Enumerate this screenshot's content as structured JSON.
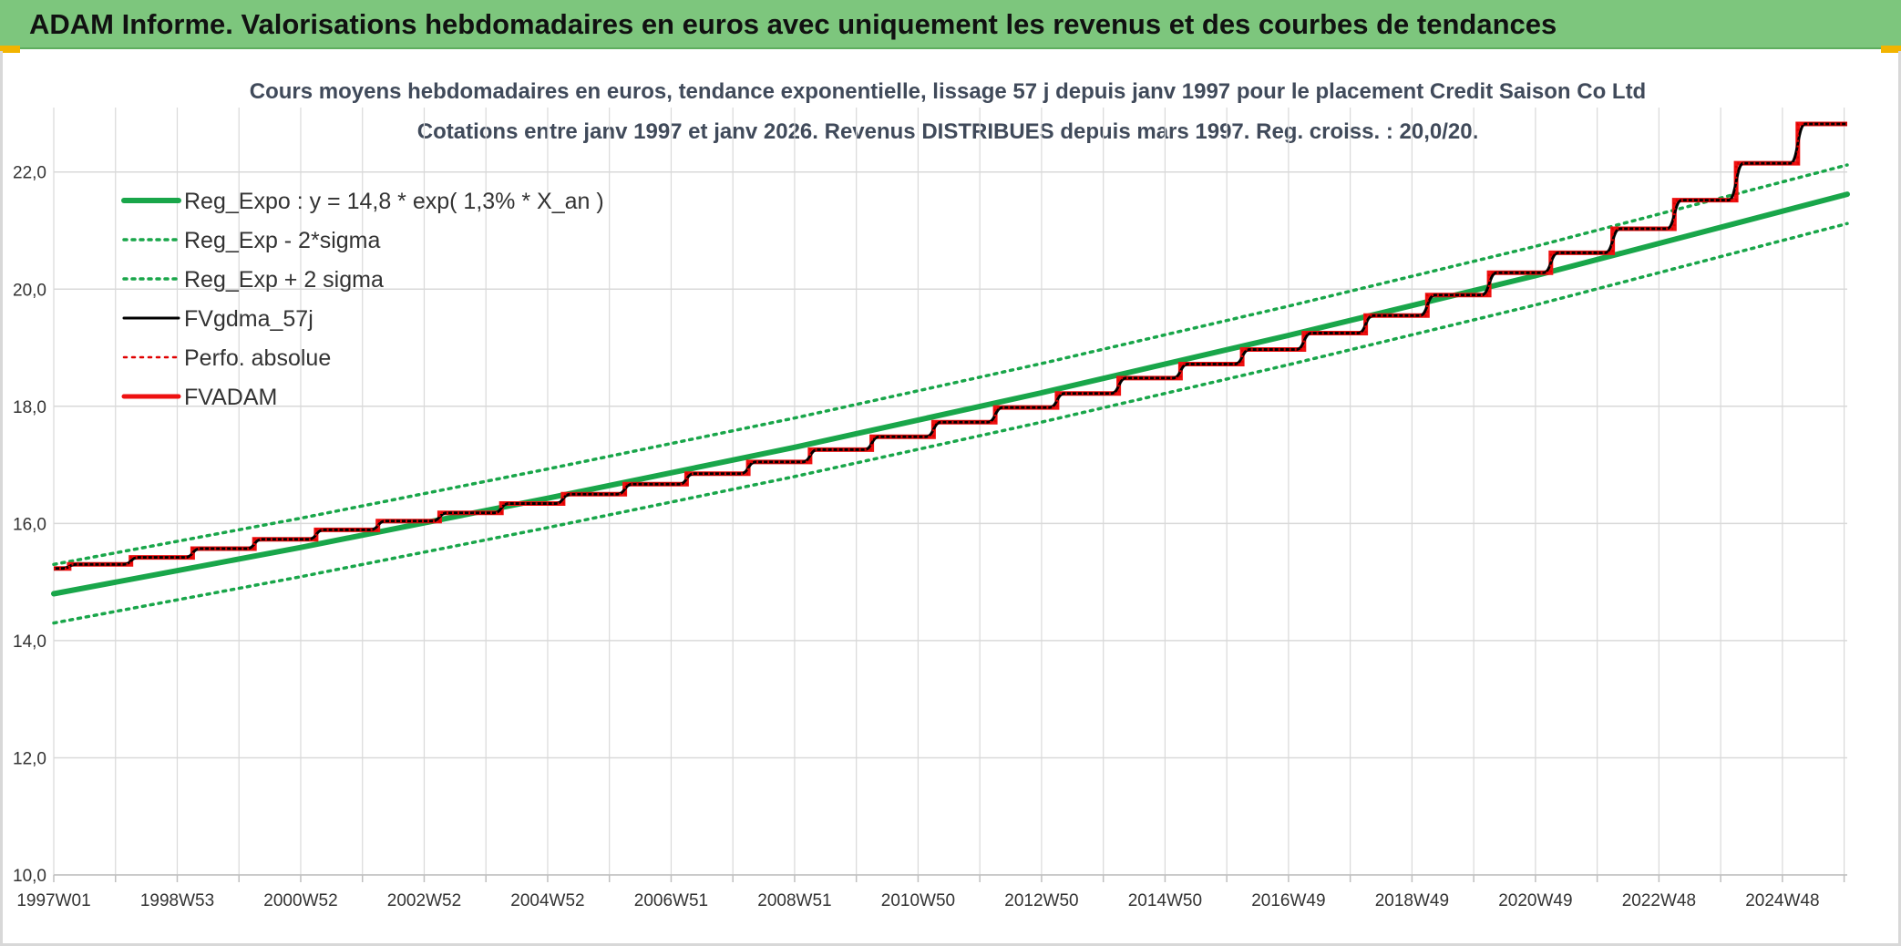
{
  "banner": {
    "title": "ADAM Informe. Valorisations hebdomadaires en euros avec uniquement les revenus et des courbes de tendances"
  },
  "chart_data": {
    "type": "line",
    "title": "Cours moyens hebdomadaires en euros, tendance exponentielle, lissage 57 j depuis janv 1997 pour le placement Credit Saison Co Ltd",
    "subtitle": "Cotations entre janv 1997 et janv 2026. Revenus DISTRIBUES depuis mars 1997. Reg. croiss. : 20,0/20.",
    "xlabel": "",
    "ylabel": "",
    "x_tick_labels": [
      "1997W01",
      "1998W53",
      "2000W52",
      "2002W52",
      "2004W52",
      "2006W51",
      "2008W51",
      "2010W50",
      "2012W50",
      "2014W50",
      "2016W49",
      "2018W49",
      "2020W49",
      "2022W48",
      "2024W48"
    ],
    "x_tick_years": [
      1997,
      1999,
      2001,
      2003,
      2005,
      2007,
      2009,
      2011,
      2013,
      2015,
      2017,
      2019,
      2021,
      2023,
      2025
    ],
    "xlim": [
      1997.0,
      2026.05
    ],
    "y_tick_labels": [
      "10,0",
      "12,0",
      "14,0",
      "16,0",
      "18,0",
      "20,0",
      "22,0"
    ],
    "y_ticks": [
      10,
      12,
      14,
      16,
      18,
      20,
      22
    ],
    "ylim": [
      10,
      23.1
    ],
    "grid": true,
    "legend_position": "top-left",
    "regression": {
      "a": 14.8,
      "growth": 0.013,
      "sigma": 0.25
    },
    "series": [
      {
        "name": "Reg_Expo : y = 14,8 * exp( 1,3% *  X_an )",
        "key": "reg",
        "color": "#19a64a",
        "style": "solid",
        "width": 6,
        "x": [
          1997.0,
          2001.0,
          2005.0,
          2009.0,
          2013.0,
          2017.0,
          2021.0,
          2026.05
        ],
        "values": [
          14.8,
          15.59,
          16.43,
          17.3,
          18.23,
          19.21,
          20.23,
          21.62
        ]
      },
      {
        "name": "Reg_Exp - 2*sigma",
        "key": "reg_minus",
        "color": "#19a64a",
        "style": "dotted",
        "width": 3.5,
        "x": [
          1997.0,
          2001.0,
          2005.0,
          2009.0,
          2013.0,
          2017.0,
          2021.0,
          2026.05
        ],
        "values": [
          14.3,
          15.09,
          15.93,
          16.8,
          17.73,
          18.71,
          19.73,
          21.12
        ]
      },
      {
        "name": "Reg_Exp + 2 sigma",
        "key": "reg_plus",
        "color": "#19a64a",
        "style": "dotted",
        "width": 3.5,
        "x": [
          1997.0,
          2001.0,
          2005.0,
          2009.0,
          2013.0,
          2017.0,
          2021.0,
          2026.05
        ],
        "values": [
          15.3,
          16.09,
          16.93,
          17.8,
          18.73,
          19.71,
          20.73,
          22.12
        ]
      },
      {
        "name": "FVgdma_57j",
        "key": "fvgdma",
        "color": "#000000",
        "style": "solid",
        "width": 3
      },
      {
        "name": "Perfo. absolue",
        "key": "perfo",
        "color": "#e00000",
        "style": "dotted",
        "width": 2.5
      },
      {
        "name": "FVADAM",
        "key": "fvadam",
        "color": "#ee1111",
        "style": "solid",
        "width": 5
      }
    ],
    "fvadam_steps": {
      "start_x": 1997.0,
      "start_value": 15.23,
      "step_x": [
        1997.25,
        1998.25,
        1999.25,
        2000.25,
        2001.25,
        2002.25,
        2003.25,
        2004.25,
        2005.25,
        2006.25,
        2007.25,
        2008.25,
        2009.25,
        2010.25,
        2011.25,
        2012.25,
        2013.25,
        2014.25,
        2015.25,
        2016.25,
        2017.25,
        2018.25,
        2019.25,
        2020.25,
        2021.25,
        2022.25,
        2023.25,
        2024.25,
        2025.25
      ],
      "values": [
        15.3,
        15.42,
        15.57,
        15.73,
        15.89,
        16.04,
        16.18,
        16.34,
        16.5,
        16.67,
        16.85,
        17.05,
        17.26,
        17.48,
        17.73,
        17.98,
        18.22,
        18.48,
        18.72,
        18.97,
        19.25,
        19.55,
        19.9,
        20.28,
        20.62,
        21.03,
        21.52,
        22.15,
        22.82
      ],
      "end_x": 2026.05
    }
  }
}
